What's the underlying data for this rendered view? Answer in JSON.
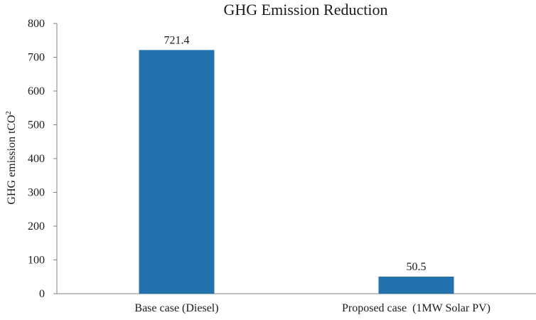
{
  "chart_data": {
    "type": "bar",
    "title": "GHG Emission Reduction",
    "ylabel": "GHG emission tCO",
    "ylabel_superscript": "2",
    "categories": [
      "Base case (Diesel)",
      "Proposed case  (1MW Solar PV)"
    ],
    "values": [
      721.4,
      50.5
    ],
    "data_labels": [
      "721.4",
      "50.5"
    ],
    "ylim": [
      0,
      800
    ],
    "yticks": [
      0,
      100,
      200,
      300,
      400,
      500,
      600,
      700,
      800
    ],
    "grid": false,
    "legend": "none",
    "bar_color": "#2372ae",
    "axis_color": "#808080"
  }
}
